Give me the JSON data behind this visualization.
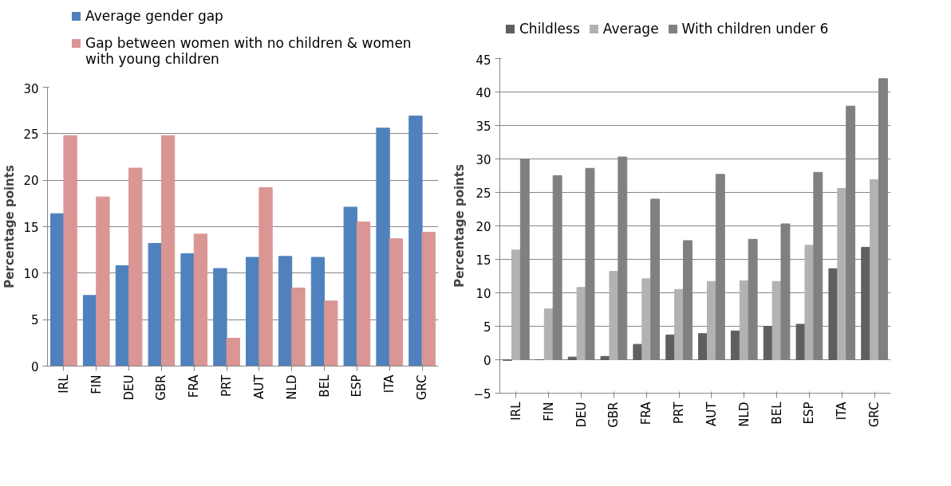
{
  "chart_data": [
    {
      "type": "bar",
      "categories": [
        "IRL",
        "FIN",
        "DEU",
        "GBR",
        "FRA",
        "PRT",
        "AUT",
        "NLD",
        "BEL",
        "ESP",
        "ITA",
        "GRC"
      ],
      "ylabel": "Percentage points",
      "ylim": [
        0,
        30
      ],
      "yticks": [
        0,
        5,
        10,
        15,
        20,
        25,
        30
      ],
      "grid": "y",
      "legend": "top",
      "series": [
        {
          "name": "Average gender gap",
          "color": "#4f81bd",
          "values": [
            16.4,
            7.6,
            10.8,
            13.2,
            12.1,
            10.5,
            11.7,
            11.8,
            11.7,
            17.1,
            25.6,
            26.9
          ]
        },
        {
          "name": "Gap between women with no children & women with young children",
          "color": "#d99694",
          "values": [
            24.8,
            18.2,
            21.3,
            24.8,
            14.2,
            3.0,
            19.2,
            8.4,
            7.0,
            15.5,
            13.7,
            14.4
          ]
        }
      ]
    },
    {
      "type": "bar",
      "categories": [
        "IRL",
        "FIN",
        "DEU",
        "GBR",
        "FRA",
        "PRT",
        "AUT",
        "NLD",
        "BEL",
        "ESP",
        "ITA",
        "GRC"
      ],
      "ylabel": "Percentage points",
      "ylim": [
        -5,
        45
      ],
      "yticks": [
        -5,
        0,
        5,
        10,
        15,
        20,
        25,
        30,
        35,
        40,
        45
      ],
      "grid": "y",
      "legend": "top",
      "series": [
        {
          "name": "Childless",
          "color": "#5f5f5f",
          "values": [
            -0.1,
            0,
            0.4,
            0.5,
            2.3,
            3.7,
            3.9,
            4.3,
            5.0,
            5.3,
            13.6,
            16.8
          ]
        },
        {
          "name": "Average",
          "color": "#b2b2b2",
          "values": [
            16.4,
            7.6,
            10.8,
            13.2,
            12.1,
            10.5,
            11.7,
            11.8,
            11.7,
            17.1,
            25.6,
            26.9
          ]
        },
        {
          "name": "With children under 6",
          "color": "#808080",
          "values": [
            30.0,
            27.5,
            28.6,
            30.3,
            24.0,
            17.8,
            27.7,
            18.0,
            20.3,
            28.0,
            37.9,
            42.0
          ]
        }
      ]
    }
  ]
}
